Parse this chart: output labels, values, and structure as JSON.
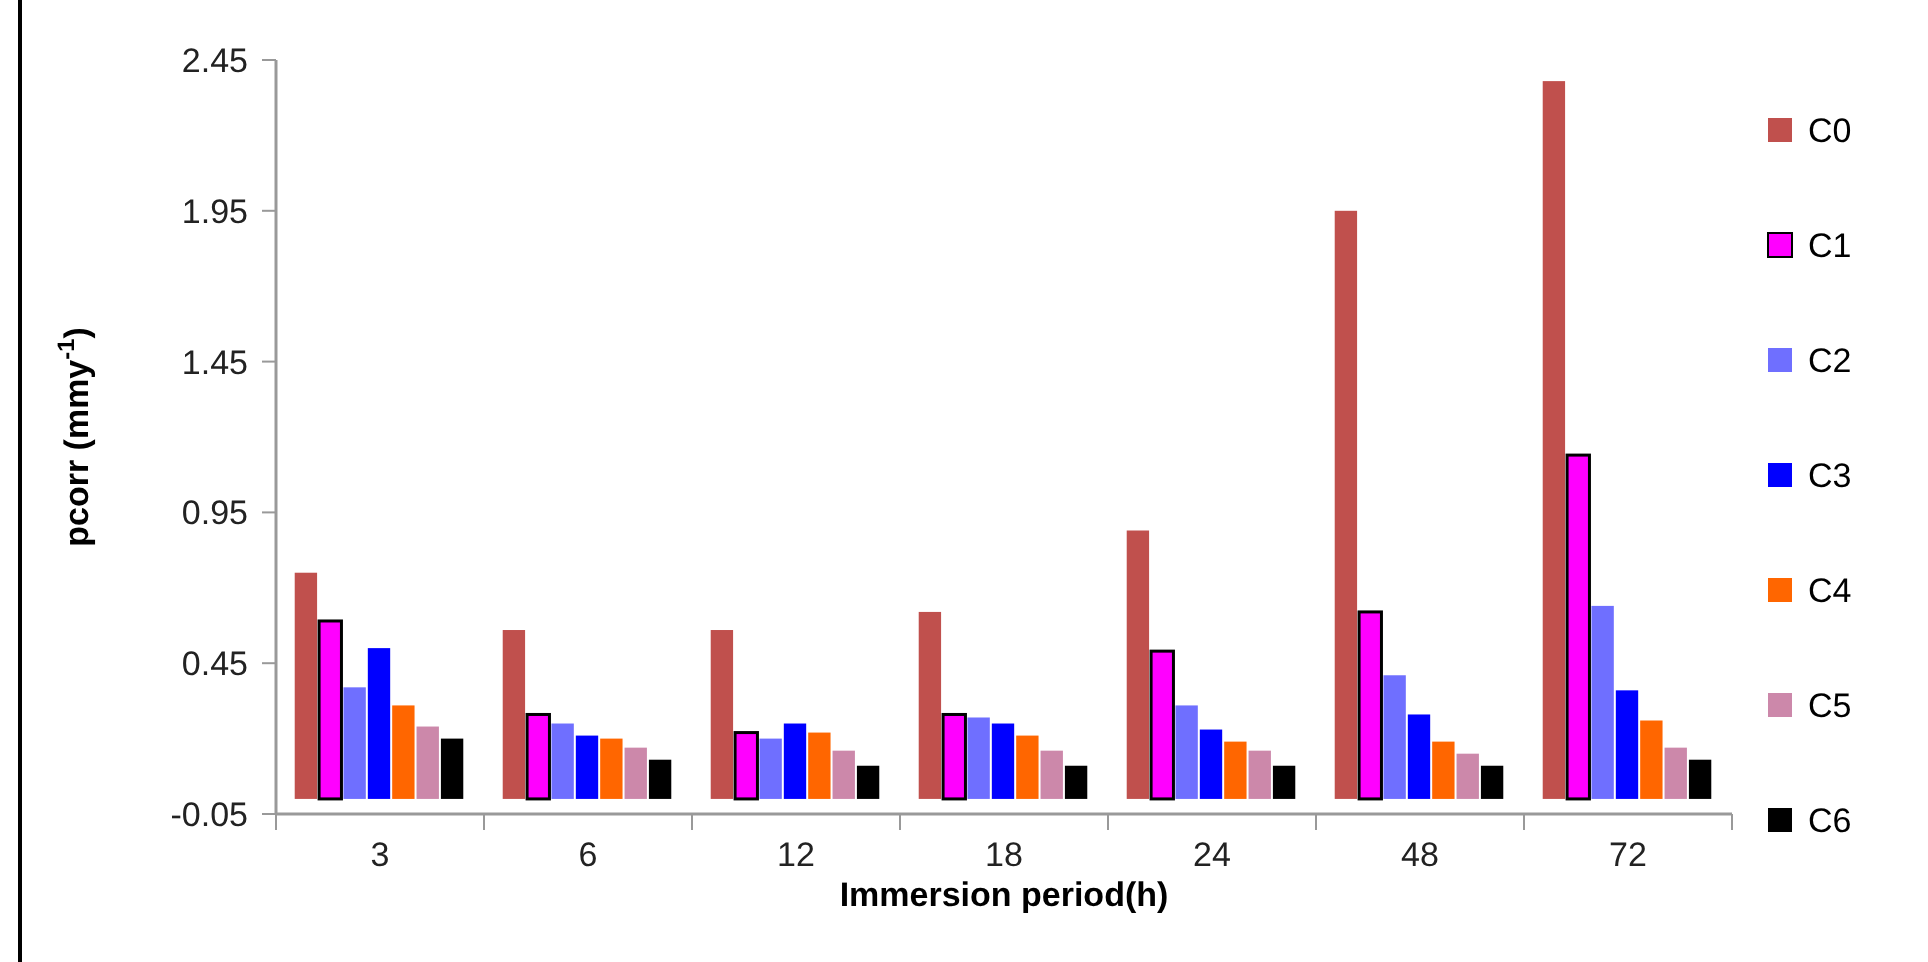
{
  "chart_data": {
    "type": "bar",
    "xlabel": "Immersion period(h)",
    "ylabel": "pcorr (mmy$^{-1}$)",
    "categories": [
      "3",
      "6",
      "12",
      "18",
      "24",
      "48",
      "72"
    ],
    "series": [
      {
        "name": "C0",
        "color": "#c0504d",
        "values": [
          0.75,
          0.56,
          0.56,
          0.62,
          0.89,
          1.95,
          2.38
        ]
      },
      {
        "name": "C1",
        "color": "#ff00ff",
        "values": [
          0.59,
          0.28,
          0.22,
          0.28,
          0.49,
          0.62,
          1.14
        ]
      },
      {
        "name": "C2",
        "color": "#6f6fff",
        "values": [
          0.37,
          0.25,
          0.2,
          0.27,
          0.31,
          0.41,
          0.64
        ]
      },
      {
        "name": "C3",
        "color": "#0000ff",
        "values": [
          0.5,
          0.21,
          0.25,
          0.25,
          0.23,
          0.28,
          0.36
        ]
      },
      {
        "name": "C4",
        "color": "#ff6600",
        "values": [
          0.31,
          0.2,
          0.22,
          0.21,
          0.19,
          0.19,
          0.26
        ]
      },
      {
        "name": "C5",
        "color": "#cc88aa",
        "values": [
          0.24,
          0.17,
          0.16,
          0.16,
          0.16,
          0.15,
          0.17
        ]
      },
      {
        "name": "C6",
        "color": "#000000",
        "values": [
          0.2,
          0.13,
          0.11,
          0.11,
          0.11,
          0.11,
          0.13
        ]
      }
    ],
    "ylim": [
      -0.05,
      2.45
    ],
    "yticks": [
      -0.05,
      0.45,
      0.95,
      1.45,
      1.95,
      2.45
    ],
    "legend": "right"
  }
}
